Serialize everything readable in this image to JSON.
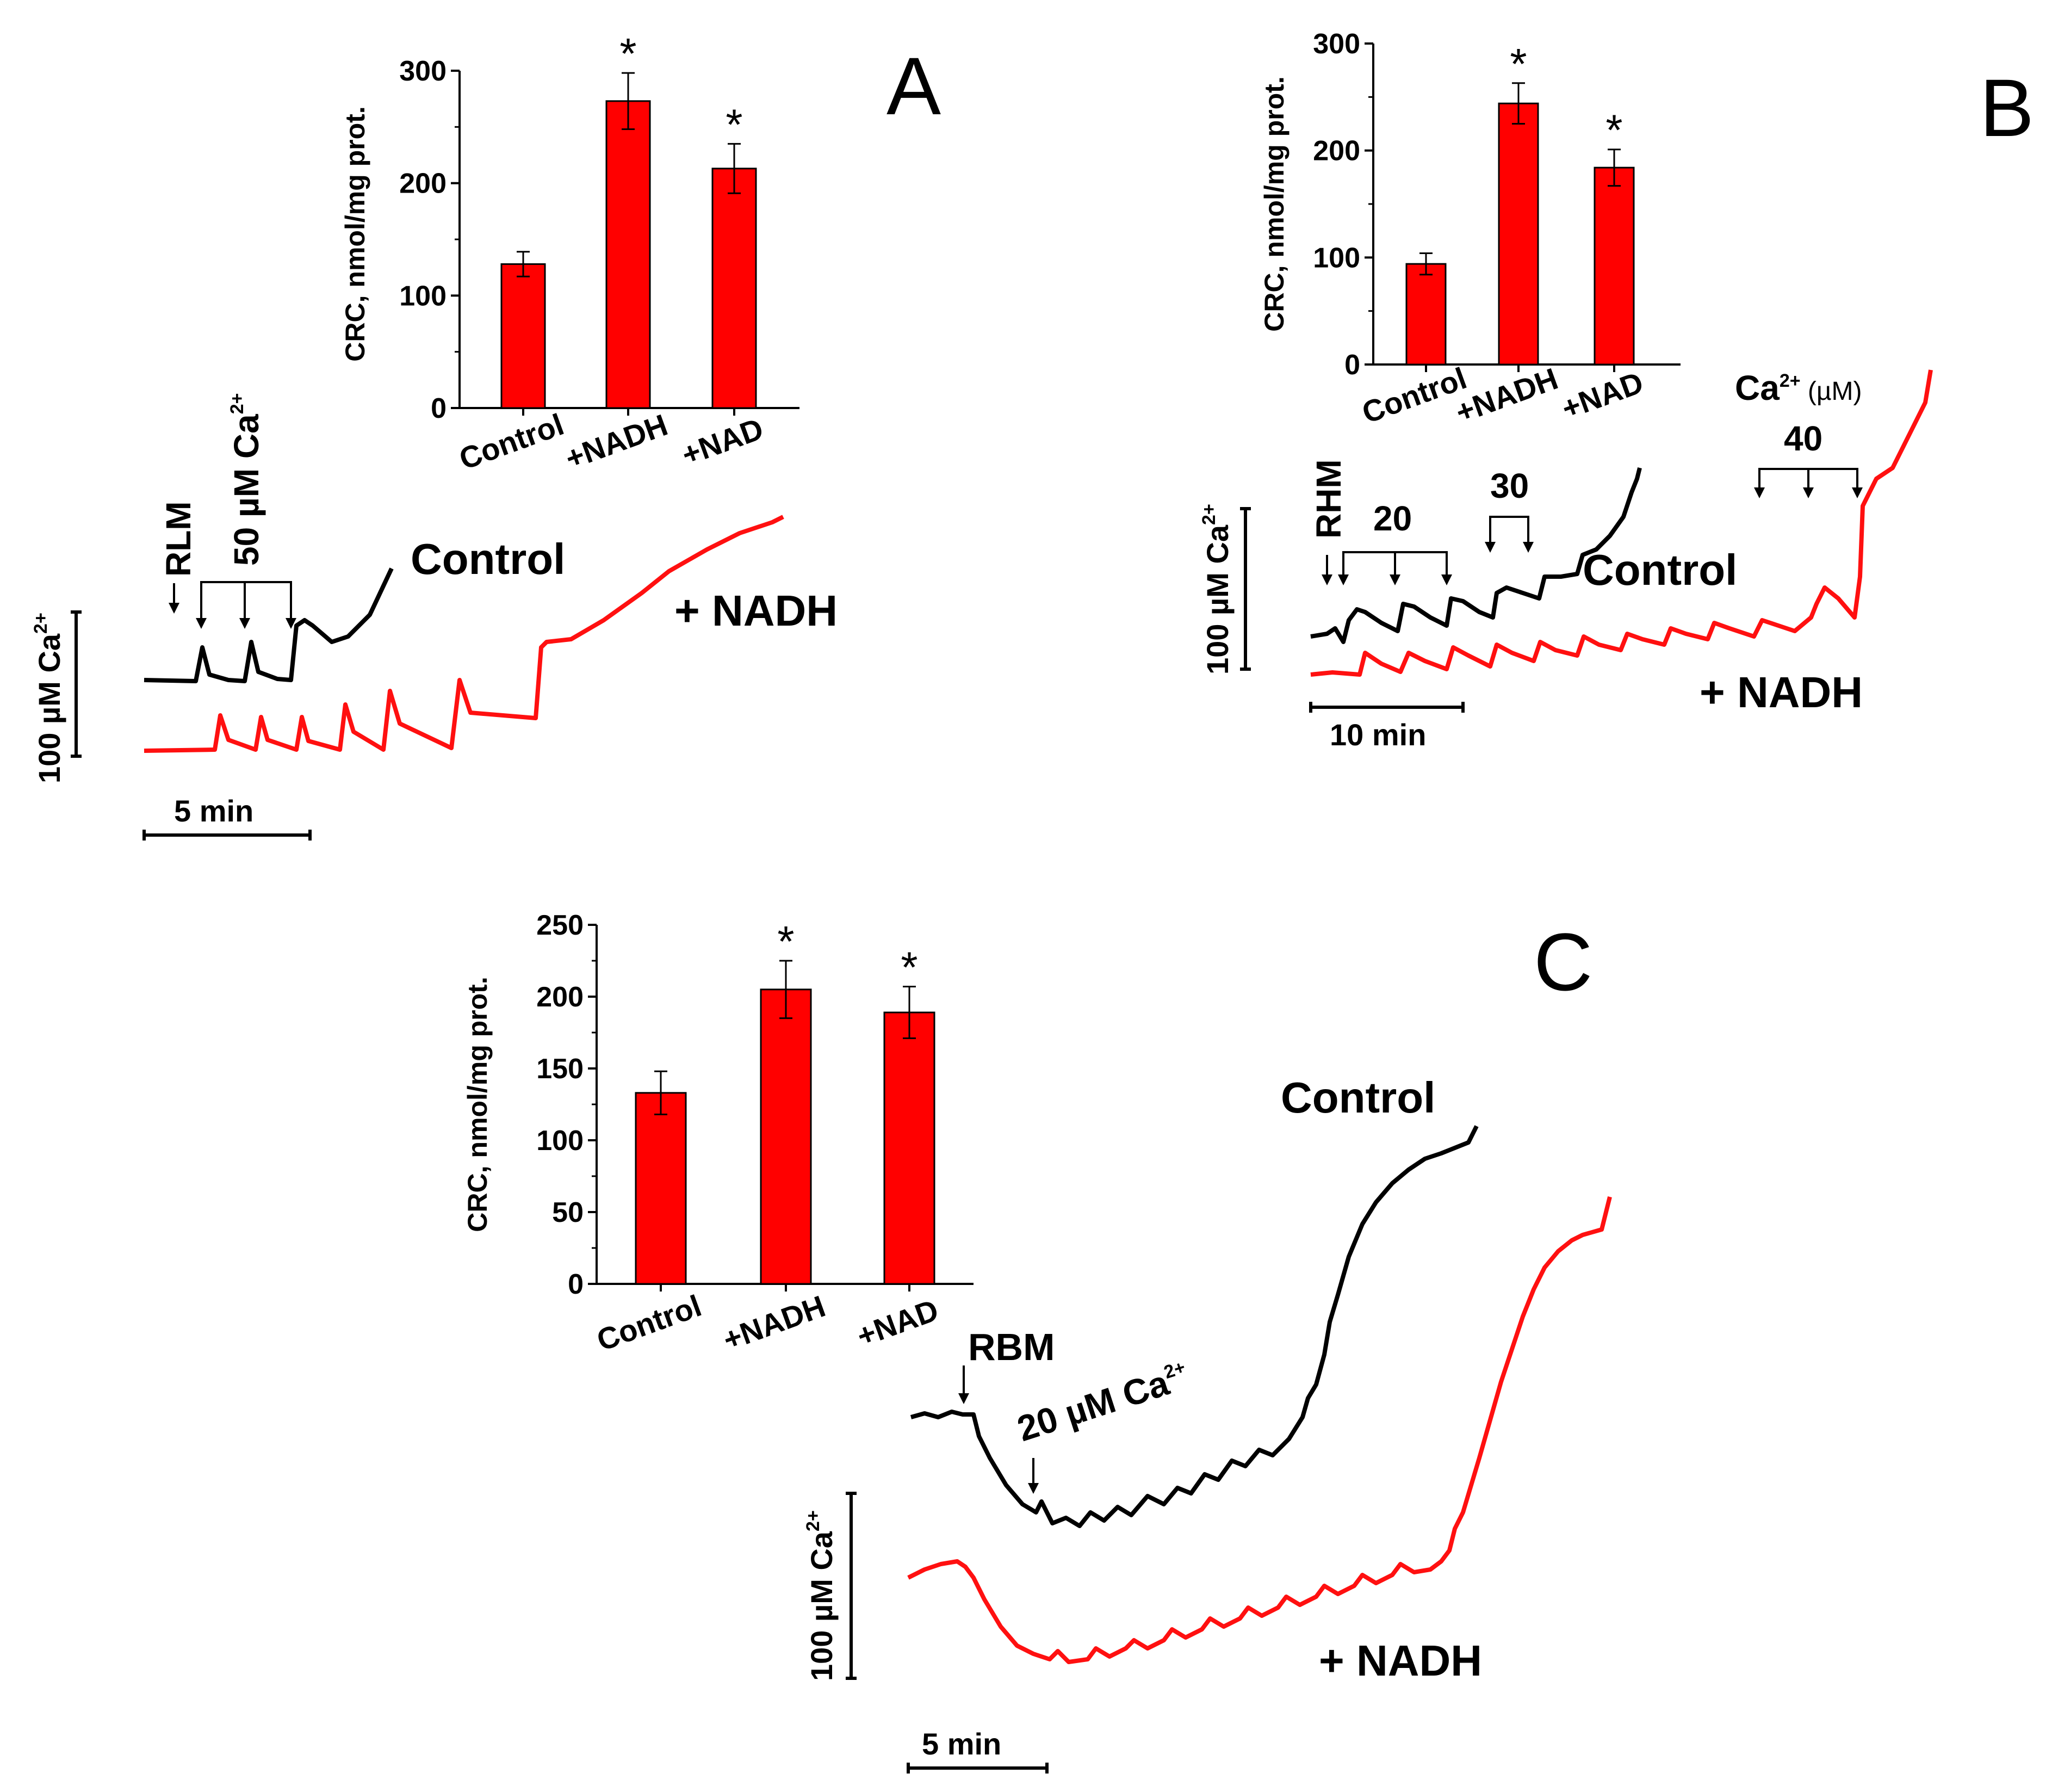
{
  "chart_data": [
    {
      "type": "bar",
      "panel": "A",
      "categories": [
        "Control",
        "+NADH",
        "+NAD"
      ],
      "values": [
        128,
        273,
        213
      ],
      "errors": [
        11,
        25,
        22
      ],
      "significance": [
        "",
        "*",
        "*"
      ],
      "ylabel": "CRC, nmol/mg prot.",
      "ylim": [
        0,
        300
      ],
      "yticks": [
        0,
        100,
        200,
        300
      ],
      "color": "#ff0000"
    },
    {
      "type": "bar",
      "panel": "B",
      "categories": [
        "Control",
        "+NADH",
        "+NAD"
      ],
      "values": [
        94,
        244,
        184
      ],
      "errors": [
        10,
        19,
        17
      ],
      "significance": [
        "",
        "*",
        "*"
      ],
      "ylabel": "CRC, nmol/mg prot.",
      "ylim": [
        0,
        300
      ],
      "yticks": [
        0,
        100,
        200,
        300
      ],
      "color": "#ff0000"
    },
    {
      "type": "bar",
      "panel": "C",
      "categories": [
        "Control",
        "+NADH",
        "+NAD"
      ],
      "values": [
        133,
        205,
        189
      ],
      "errors": [
        15,
        20,
        18
      ],
      "significance": [
        "",
        "*",
        "*"
      ],
      "ylabel": "CRC, nmol/mg prot.",
      "ylim": [
        0,
        250
      ],
      "yticks": [
        0,
        50,
        100,
        150,
        200,
        250
      ],
      "color": "#ff0000"
    },
    {
      "type": "line",
      "panel": "A",
      "series": [
        {
          "name": "Control",
          "color": "#000000",
          "pulses": 3,
          "unit": "50 µM Ca2+ additions"
        },
        {
          "name": "+ NADH",
          "color": "#ff1010",
          "pulses": 7
        }
      ],
      "scale_time": "5 min",
      "scale_conc": "100 µM Ca2+"
    },
    {
      "type": "line",
      "panel": "B",
      "series": [
        {
          "name": "Control",
          "color": "#000000",
          "additions_uM": [
            20,
            20,
            20,
            30,
            30
          ]
        },
        {
          "name": "+ NADH",
          "color": "#ff1010",
          "additions_uM": [
            20,
            40
          ]
        }
      ],
      "scale_time": "10 min",
      "scale_conc": "100 µM Ca2+"
    },
    {
      "type": "line",
      "panel": "C",
      "series": [
        {
          "name": "Control",
          "color": "#000000",
          "pulse_uM": 20
        },
        {
          "name": "+ NADH",
          "color": "#ff1010",
          "pulse_uM": 20
        }
      ],
      "scale_time": "5 min",
      "scale_conc": "100 µM Ca2+"
    }
  ],
  "panels": {
    "A": {
      "letter": "A",
      "control_label": "Control",
      "nadh_label": "+ NADH",
      "mito_label": "RLM",
      "addition_label": "50 µM Ca",
      "addition_sup": "2+",
      "scale_time": "5 min",
      "scale_conc": "100 µM Ca",
      "scale_sup": "2+"
    },
    "B": {
      "letter": "B",
      "control_label": "Control",
      "nadh_label": "+ NADH",
      "mito_label": "RHM",
      "add_20": "20",
      "add_30": "30",
      "add_40": "40",
      "ca_header": "Ca",
      "ca_header_sup": "2+",
      "ca_header_unit": " (µM)",
      "scale_time": "10 min",
      "scale_conc": "100 µM Ca",
      "scale_sup": "2+"
    },
    "C": {
      "letter": "C",
      "control_label": "Control",
      "nadh_label": "+ NADH",
      "mito_label": "RBM",
      "addition_label": "20 µM Ca",
      "addition_sup": "2+",
      "scale_time": "5 min",
      "scale_conc": "100 µM Ca",
      "scale_sup": "2+"
    }
  }
}
